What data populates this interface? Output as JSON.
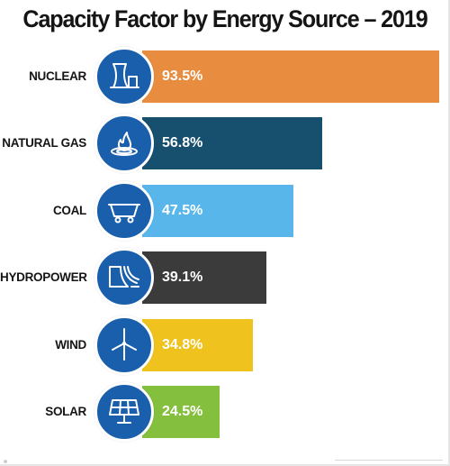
{
  "title": "Capacity Factor by Energy Source – 2019",
  "chart_data": {
    "type": "bar",
    "orientation": "horizontal",
    "title": "Capacity Factor by Energy Source – 2019",
    "xlabel": "",
    "ylabel": "",
    "xlim": [
      0,
      100
    ],
    "grid": false,
    "legend": "none",
    "categories": [
      "NUCLEAR",
      "NATURAL GAS",
      "COAL",
      "HYDROPOWER",
      "WIND",
      "SOLAR"
    ],
    "values": [
      93.5,
      56.8,
      47.5,
      39.1,
      34.8,
      24.5
    ],
    "value_labels": [
      "93.5%",
      "56.8%",
      "47.5%",
      "39.1%",
      "34.8%",
      "24.5%"
    ],
    "bar_colors": [
      "#e88d3f",
      "#16506e",
      "#58b6ea",
      "#3b3b3b",
      "#efc21d",
      "#84bf3d"
    ],
    "icon_color": "#1a5fac",
    "icons": [
      "nuclear-plant-icon",
      "gas-flame-icon",
      "coal-cart-icon",
      "hydro-dam-icon",
      "wind-turbine-icon",
      "solar-panel-icon"
    ]
  }
}
